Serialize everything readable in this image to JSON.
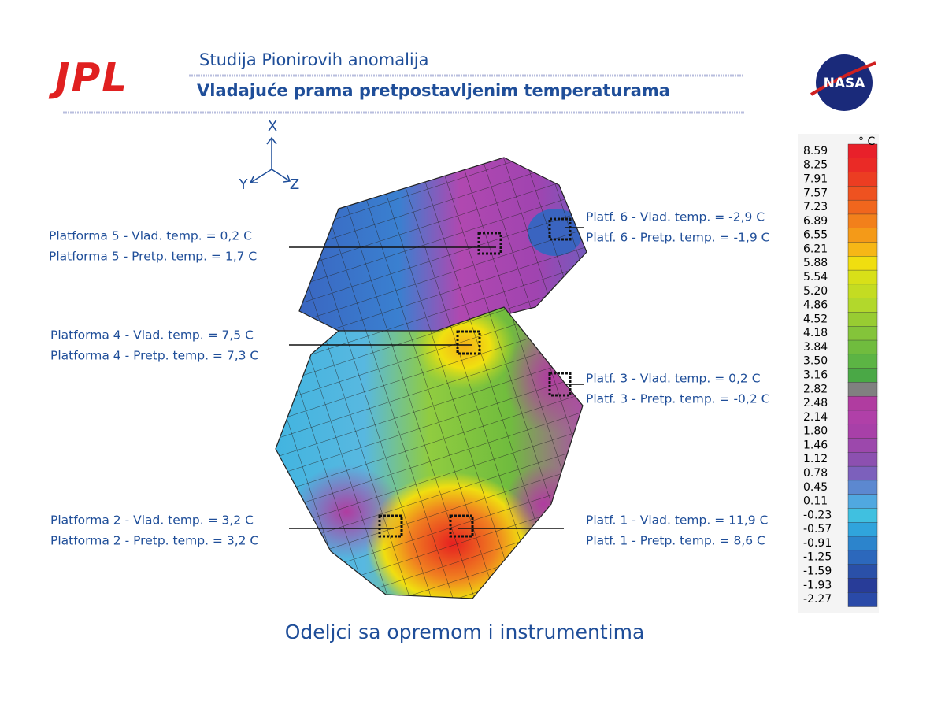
{
  "header": {
    "title": "Studija Pionirovih anomalija",
    "subtitle": "Vladajuće prama pretpostavljenim temperaturama",
    "logo_left": "JPL",
    "logo_right": "NASA"
  },
  "axes": {
    "x": "X",
    "y": "Y",
    "z": "Z"
  },
  "annotations": [
    {
      "lines": [
        "Platforma 5 - Vlad. temp. = 0,2 C",
        "Platforma 5 - Pretp. temp. = 1,7 C"
      ]
    },
    {
      "lines": [
        "Platforma 4 - Vlad. temp. = 7,5 C",
        "Platforma 4 - Pretp. temp. = 7,3 C"
      ]
    },
    {
      "lines": [
        "Platforma 2 - Vlad. temp. = 3,2 C",
        "Platforma 2 - Pretp. temp. = 3,2 C"
      ]
    },
    {
      "lines": [
        "Platf. 6 - Vlad. temp. = -2,9 C",
        "Platf. 6 - Pretp. temp. = -1,9 C"
      ]
    },
    {
      "lines": [
        "Platf. 3 - Vlad. temp. = 0,2 C",
        "Platf. 3 - Pretp. temp. = -0,2 C"
      ]
    },
    {
      "lines": [
        "Platf. 1 - Vlad. temp. = 11,9 C",
        "Platf. 1 - Pretp. temp. = 8,6 C"
      ]
    }
  ],
  "colorbar": {
    "unit": "° C",
    "labels": [
      "8.59",
      "8.25",
      "7.91",
      "7.57",
      "7.23",
      "6.89",
      "6.55",
      "6.21",
      "5.88",
      "5.54",
      "5.20",
      "4.86",
      "4.52",
      "4.18",
      "3.84",
      "3.50",
      "3.16",
      "2.82",
      "2.48",
      "2.14",
      "1.80",
      "1.46",
      "1.12",
      "0.78",
      "0.45",
      "0.11",
      "-0.23",
      "-0.57",
      "-0.91",
      "-1.25",
      "-1.59",
      "-1.93",
      "-2.27"
    ],
    "colors": [
      "#e8202a",
      "#ea2a26",
      "#ec3d22",
      "#ee5220",
      "#f0661d",
      "#f2801b",
      "#f49a18",
      "#f6b716",
      "#f0de10",
      "#d8e018",
      "#c4dc22",
      "#b2d82c",
      "#98cc32",
      "#84c43a",
      "#70bc3e",
      "#5cb444",
      "#4aa846",
      "#808080",
      "#b03ca0",
      "#b040a8",
      "#a840a8",
      "#9c48ac",
      "#8c50b0",
      "#7c60bc",
      "#5c88d0",
      "#50a8e0",
      "#40c0e0",
      "#30a4dc",
      "#2c84cc",
      "#2c68bc",
      "#2a50a8",
      "#283c98",
      "#2a4aa8"
    ]
  },
  "caption": "Odeljci sa opremom i instrumentima"
}
